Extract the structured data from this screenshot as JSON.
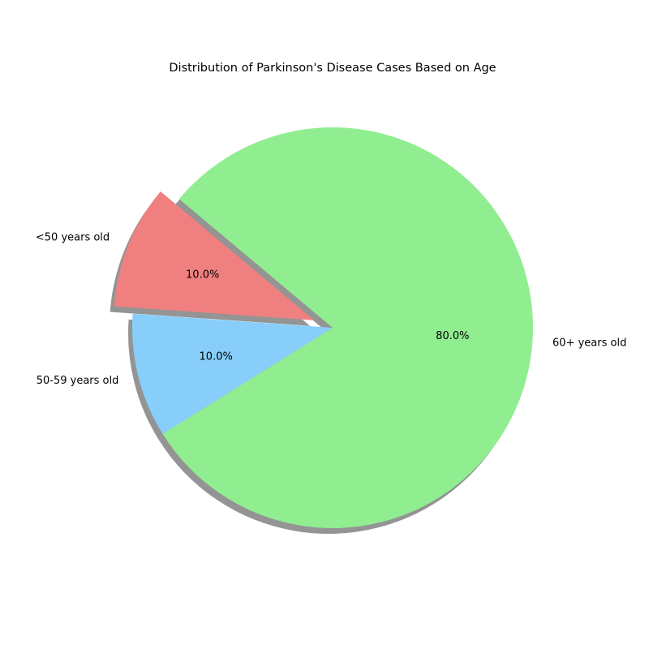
{
  "chart_data": {
    "type": "pie",
    "title": "Distribution of Parkinson's Disease Cases Based on Age",
    "categories": [
      "<50 years old",
      "50-59 years old",
      "60+ years old"
    ],
    "values": [
      10.0,
      10.0,
      80.0
    ],
    "percent_labels": [
      "10.0%",
      "10.0%",
      "80.0%"
    ],
    "colors": [
      "#f08080",
      "#87cefa",
      "#90ee90"
    ],
    "exploded": [
      true,
      false,
      false
    ],
    "shadow": true,
    "start_angle_deg": 140,
    "direction": "counterclockwise",
    "legend": "none"
  }
}
